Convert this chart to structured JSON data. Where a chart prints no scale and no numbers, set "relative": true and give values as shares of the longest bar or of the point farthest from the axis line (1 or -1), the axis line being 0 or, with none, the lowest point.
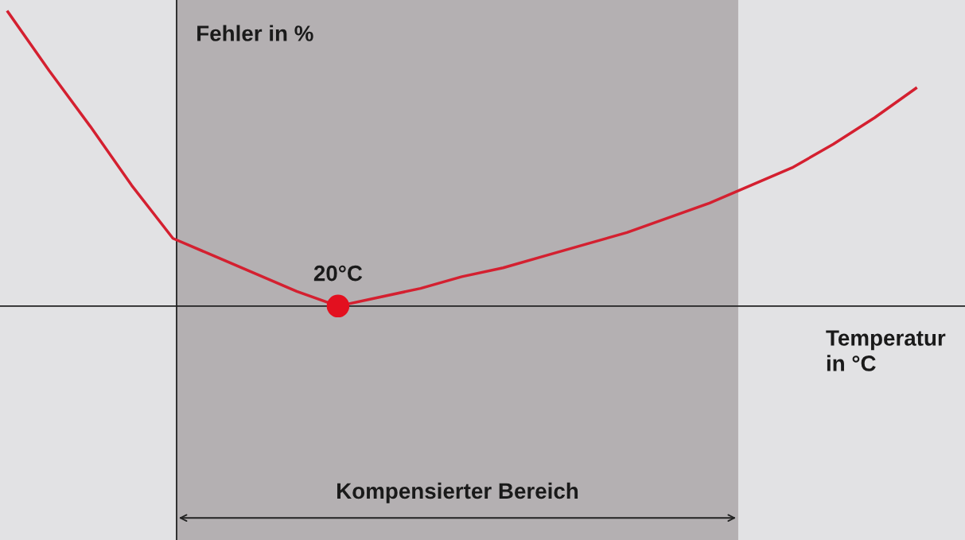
{
  "chart_data": {
    "type": "line",
    "relative": true,
    "xlabel": "Temperatur\nin °C",
    "ylabel": "Fehler in %",
    "categories": [
      null,
      null,
      null,
      null,
      null,
      null,
      null,
      null,
      null,
      null,
      null,
      null,
      null,
      null,
      null,
      null,
      null,
      null,
      null,
      null,
      null,
      null,
      null
    ],
    "series": [
      {
        "color": "#d42030",
        "values": [
          1.0,
          0.8,
          0.61,
          0.41,
          0.23,
          0.17,
          0.11,
          0.05,
          0,
          0.03,
          0.06,
          0.1,
          0.13,
          0.17,
          0.21,
          0.25,
          0.3,
          0.35,
          0.41,
          0.47,
          0.55,
          0.64,
          0.74
        ]
      }
    ],
    "annotations": [
      "20°C",
      "Kompensierter Bereich"
    ]
  }
}
